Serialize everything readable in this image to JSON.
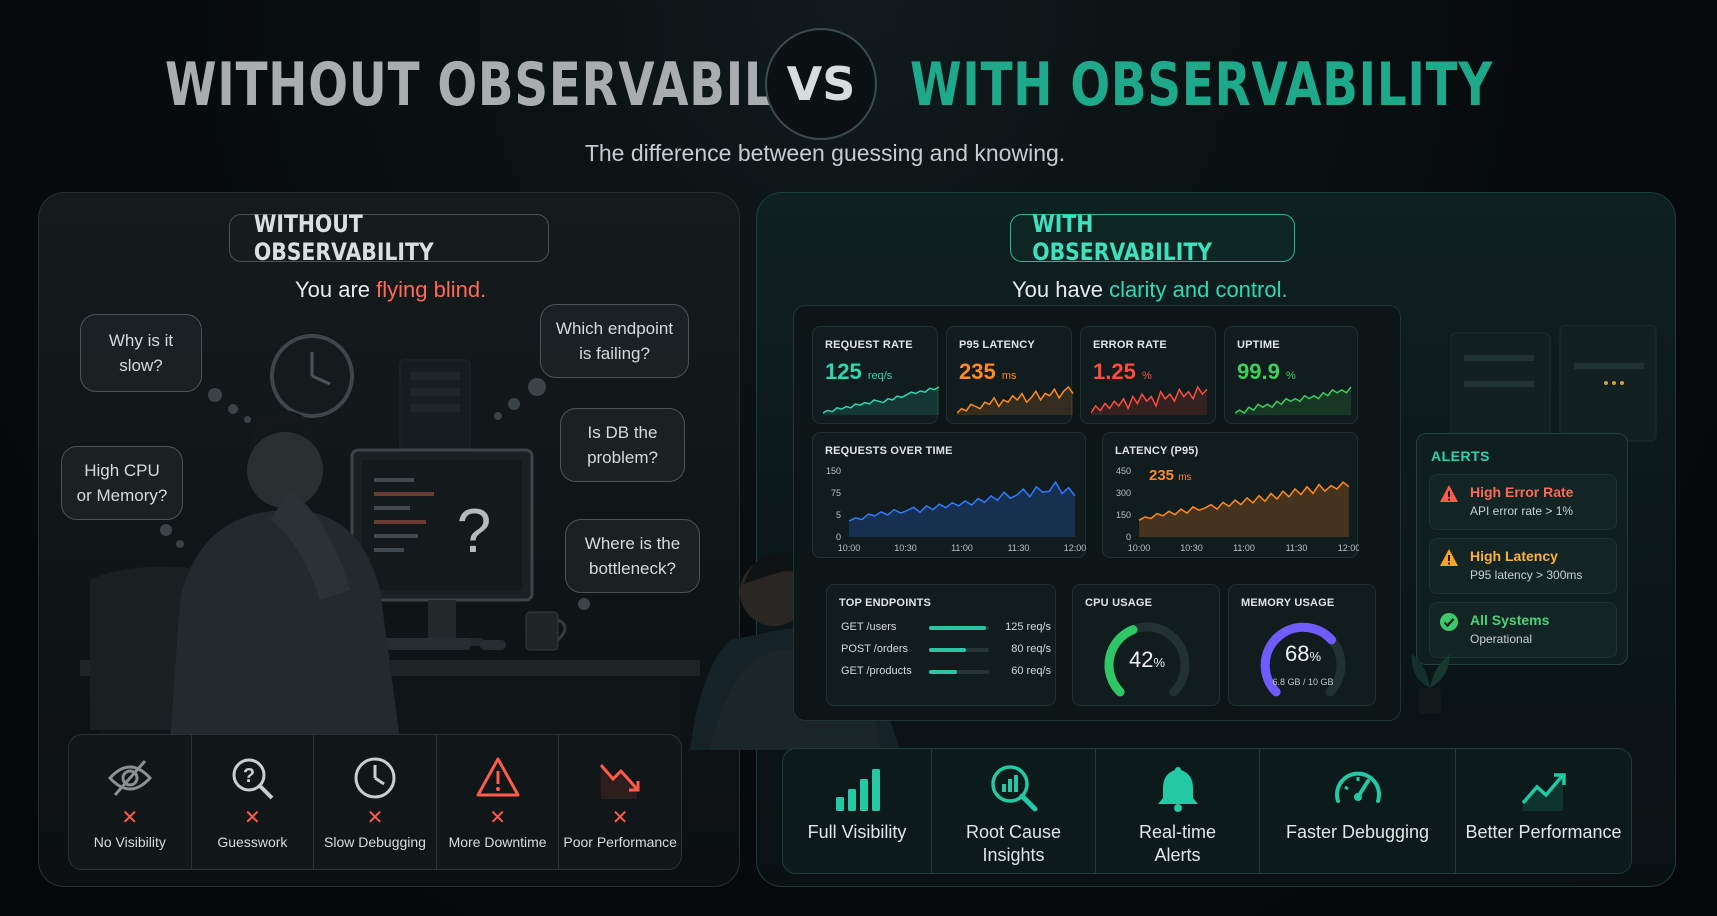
{
  "header": {
    "left_title": "WITHOUT OBSERVABILITY",
    "vs": "VS",
    "right_title": "WITH OBSERVABILITY",
    "subtitle": "The difference between guessing and knowing."
  },
  "left_panel": {
    "pill": "WITHOUT OBSERVABILITY",
    "tagline_prefix": "You are ",
    "tagline_highlight": "flying blind.",
    "bubbles": [
      {
        "line1": "Why is it",
        "line2": "slow?"
      },
      {
        "line1": "High CPU",
        "line2": "or Memory?"
      },
      {
        "line1": "Which endpoint",
        "line2": "is failing?"
      },
      {
        "line1": "Is DB the",
        "line2": "problem?"
      },
      {
        "line1": "Where is the",
        "line2": "bottleneck?"
      }
    ],
    "screen_glyph": "?",
    "features": [
      {
        "icon": "eye-off-icon",
        "mark": "✕",
        "label": "No Visibility"
      },
      {
        "icon": "question-search-icon",
        "mark": "✕",
        "label": "Guesswork"
      },
      {
        "icon": "clock-icon",
        "mark": "✕",
        "label": "Slow Debugging"
      },
      {
        "icon": "warning-icon",
        "mark": "✕",
        "label": "More Downtime"
      },
      {
        "icon": "trend-down-icon",
        "mark": "✕",
        "label": "Poor Performance"
      }
    ]
  },
  "right_panel": {
    "pill": "WITH OBSERVABILITY",
    "tagline_prefix": "You have ",
    "tagline_highlight": "clarity and control.",
    "features": [
      {
        "icon": "bar-chart-icon",
        "line1": "Full Visibility",
        "line2": ""
      },
      {
        "icon": "magnify-chart-icon",
        "line1": "Root Cause",
        "line2": "Insights"
      },
      {
        "icon": "bell-icon",
        "line1": "Real-time",
        "line2": "Alerts"
      },
      {
        "icon": "speedometer-icon",
        "line1": "Faster Debugging",
        "line2": ""
      },
      {
        "icon": "trend-up-icon",
        "line1": "Better Performance",
        "line2": ""
      }
    ]
  },
  "dashboard": {
    "kpis": [
      {
        "label": "REQUEST RATE",
        "value": "125",
        "unit": "req/s",
        "color": "#2fd6b0",
        "spark": [
          4,
          6,
          5,
          8,
          7,
          9,
          8,
          11,
          10,
          12,
          11,
          14,
          13,
          12,
          15,
          14,
          17,
          16,
          18,
          20,
          19,
          21,
          20,
          23,
          22,
          24
        ]
      },
      {
        "label": "P95 LATENCY",
        "value": "235",
        "unit": "ms",
        "color": "#ff8a1f",
        "spark": [
          6,
          8,
          7,
          10,
          9,
          8,
          11,
          10,
          13,
          9,
          12,
          11,
          14,
          12,
          15,
          11,
          13,
          16,
          12,
          15,
          14,
          17,
          13,
          16,
          18,
          15
        ]
      },
      {
        "label": "ERROR RATE",
        "value": "1.25",
        "unit": "%",
        "color": "#ff4b3e",
        "spark": [
          5,
          8,
          6,
          9,
          7,
          10,
          8,
          11,
          7,
          12,
          9,
          13,
          10,
          12,
          8,
          14,
          11,
          13,
          10,
          15,
          12,
          14,
          11,
          16,
          13,
          15
        ]
      },
      {
        "label": "UPTIME",
        "value": "99.9",
        "unit": "%",
        "color": "#3ccf5a",
        "spark": [
          6,
          7,
          6,
          8,
          7,
          9,
          8,
          9,
          8,
          10,
          9,
          11,
          10,
          11,
          10,
          12,
          11,
          12,
          11,
          13,
          12,
          14,
          13,
          14,
          13,
          15
        ]
      }
    ],
    "requests_over_time": {
      "title": "REQUESTS OVER TIME",
      "y_ticks": [
        "150",
        "75",
        "5",
        "0"
      ],
      "x_ticks": [
        "10:00",
        "10:30",
        "11:00",
        "11:30",
        "12:00"
      ],
      "color": "#2f7bff",
      "series": [
        55,
        62,
        58,
        70,
        66,
        75,
        68,
        80,
        72,
        78,
        85,
        74,
        88,
        80,
        92,
        84,
        95,
        88,
        99,
        90,
        104,
        96,
        110,
        100,
        118,
        105,
        112,
        125,
        108,
        130,
        118,
        120,
        140,
        115,
        128,
        110
      ]
    },
    "latency_p95": {
      "title": "LATENCY (P95)",
      "value": "235",
      "unit": "ms",
      "y_ticks": [
        "450",
        "300",
        "150",
        "0"
      ],
      "x_ticks": [
        "10:00",
        "10:30",
        "11:00",
        "11:30",
        "12:00"
      ],
      "color": "#ff8a1f",
      "series": [
        120,
        135,
        128,
        150,
        140,
        160,
        145,
        170,
        152,
        180,
        165,
        175,
        190,
        170,
        200,
        182,
        210,
        190,
        220,
        198,
        230,
        205,
        240,
        215,
        250,
        225,
        260,
        235,
        270,
        240,
        280,
        250,
        275,
        260,
        290,
        270
      ]
    },
    "top_endpoints": {
      "title": "TOP ENDPOINTS",
      "rows": [
        {
          "name": "GET /users",
          "value": "125 req/s",
          "fraction": 0.95
        },
        {
          "name": "POST /orders",
          "value": "80 req/s",
          "fraction": 0.62
        },
        {
          "name": "GET /products",
          "value": "60 req/s",
          "fraction": 0.47
        }
      ]
    },
    "cpu": {
      "title": "CPU USAGE",
      "value": "42",
      "unit": "%",
      "fraction": 0.42,
      "color": "#2fc766"
    },
    "memory": {
      "title": "MEMORY USAGE",
      "value": "68",
      "unit": "%",
      "fraction": 0.68,
      "detail": "6.8 GB / 10 GB",
      "color": "#6f5cff"
    }
  },
  "alerts": {
    "title": "ALERTS",
    "items": [
      {
        "icon": "warning-icon",
        "title": "High Error Rate",
        "sub": "API error rate > 1%",
        "color": "#ff5a4a"
      },
      {
        "icon": "warning-icon",
        "title": "High Latency",
        "sub": "P95 latency > 300ms",
        "color": "#ffa321"
      },
      {
        "icon": "check-circle-icon",
        "title": "All Systems",
        "sub": "Operational",
        "color": "#3cc76a"
      }
    ]
  }
}
